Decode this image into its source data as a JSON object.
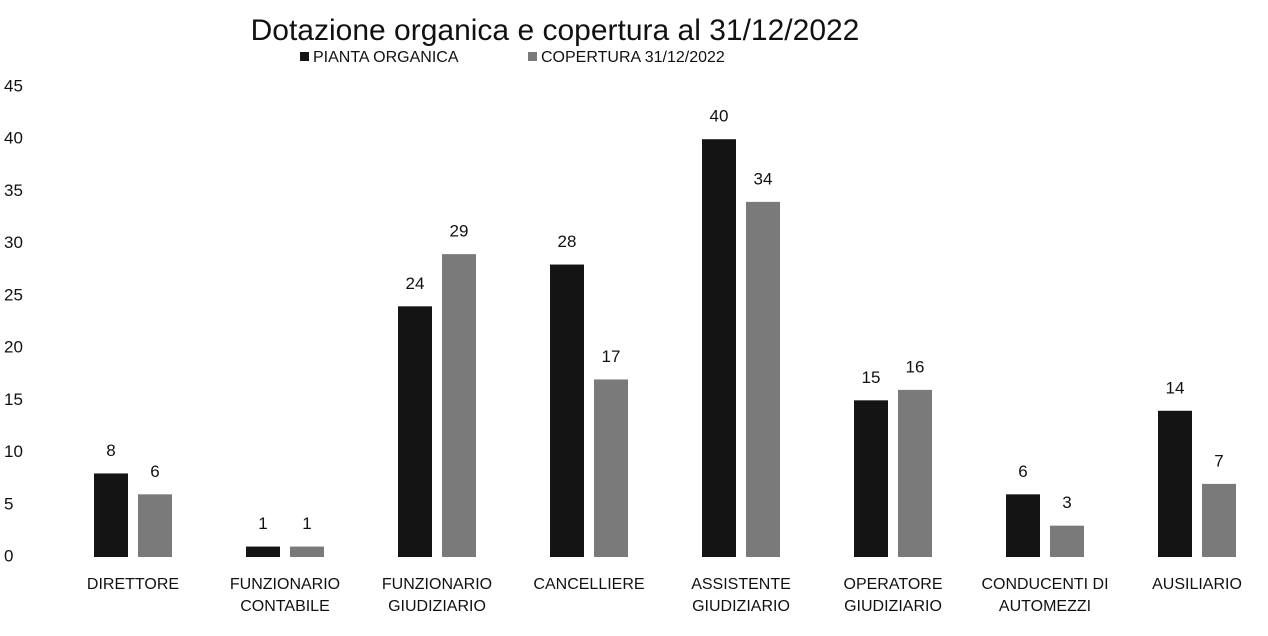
{
  "chart_data": {
    "type": "bar",
    "title": "Dotazione organica e copertura al 31/12/2022",
    "categories": [
      "DIRETTORE",
      "FUNZIONARIO CONTABILE",
      "FUNZIONARIO GIUDIZIARIO",
      "CANCELLIERE",
      "ASSISTENTE GIUDIZIARIO",
      "OPERATORE GIUDIZIARIO",
      "CONDUCENTI DI AUTOMEZZI",
      "AUSILIARIO"
    ],
    "series": [
      {
        "name": "PIANTA ORGANICA",
        "color": "#141414",
        "values": [
          8,
          1,
          24,
          28,
          40,
          15,
          6,
          14
        ]
      },
      {
        "name": "COPERTURA 31/12/2022",
        "color": "#7a7a7a",
        "values": [
          6,
          1,
          29,
          17,
          34,
          16,
          3,
          7
        ]
      }
    ],
    "ylim": [
      0,
      45
    ],
    "yticks": [
      0,
      5,
      10,
      15,
      20,
      25,
      30,
      35,
      40,
      45
    ],
    "grid": false,
    "legend": "top"
  }
}
